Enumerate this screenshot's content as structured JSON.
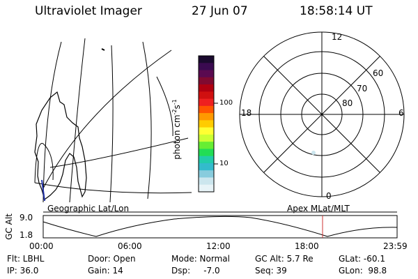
{
  "header": {
    "instrument": "Ultraviolet Imager",
    "date": "27 Jun 07",
    "time": "18:58:14 UT"
  },
  "colorbar": {
    "label": "photon cm",
    "label_sup1": "-2",
    "label_mid": "s",
    "label_sup2": "-1",
    "ticks": [
      "100",
      "10"
    ],
    "colors": [
      "#1a0a2e",
      "#3a0a50",
      "#5a0a50",
      "#800a30",
      "#b00010",
      "#d01010",
      "#ee2020",
      "#ff5500",
      "#ff9900",
      "#ffcc00",
      "#ffff33",
      "#ccff33",
      "#66ee33",
      "#22dd55",
      "#22ccaa",
      "#33bbcc",
      "#88ccdd",
      "#cce6ee",
      "#e8f4f8"
    ]
  },
  "polar": {
    "mlt_labels": {
      "top": "12",
      "left": "18",
      "right": "6",
      "bottom": "0"
    },
    "lat_labels": [
      "60",
      "70",
      "80"
    ]
  },
  "timeline": {
    "left_label": "Geographic Lat/Lon",
    "right_label": "Apex  MLat/MLT",
    "axis_title": "GC Alt",
    "y_ticks": [
      "9.0",
      "1.8"
    ],
    "x_ticks": [
      "00:00",
      "06:00",
      "12:00",
      "18:00",
      "23:59"
    ],
    "marker_color": "#cc3333"
  },
  "info": {
    "flt": "Flt: LBHL",
    "ip": "IP: 36.0",
    "door": "Door: Open",
    "gain": "Gain: 14",
    "mode": "Mode: Normal",
    "dsp": "Dsp:     -7.0",
    "gcalt": "GC Alt: 5.7 Re",
    "seq": "Seq: 39",
    "glat": "GLat: -60.1",
    "glon": "GLon:  98.8"
  }
}
